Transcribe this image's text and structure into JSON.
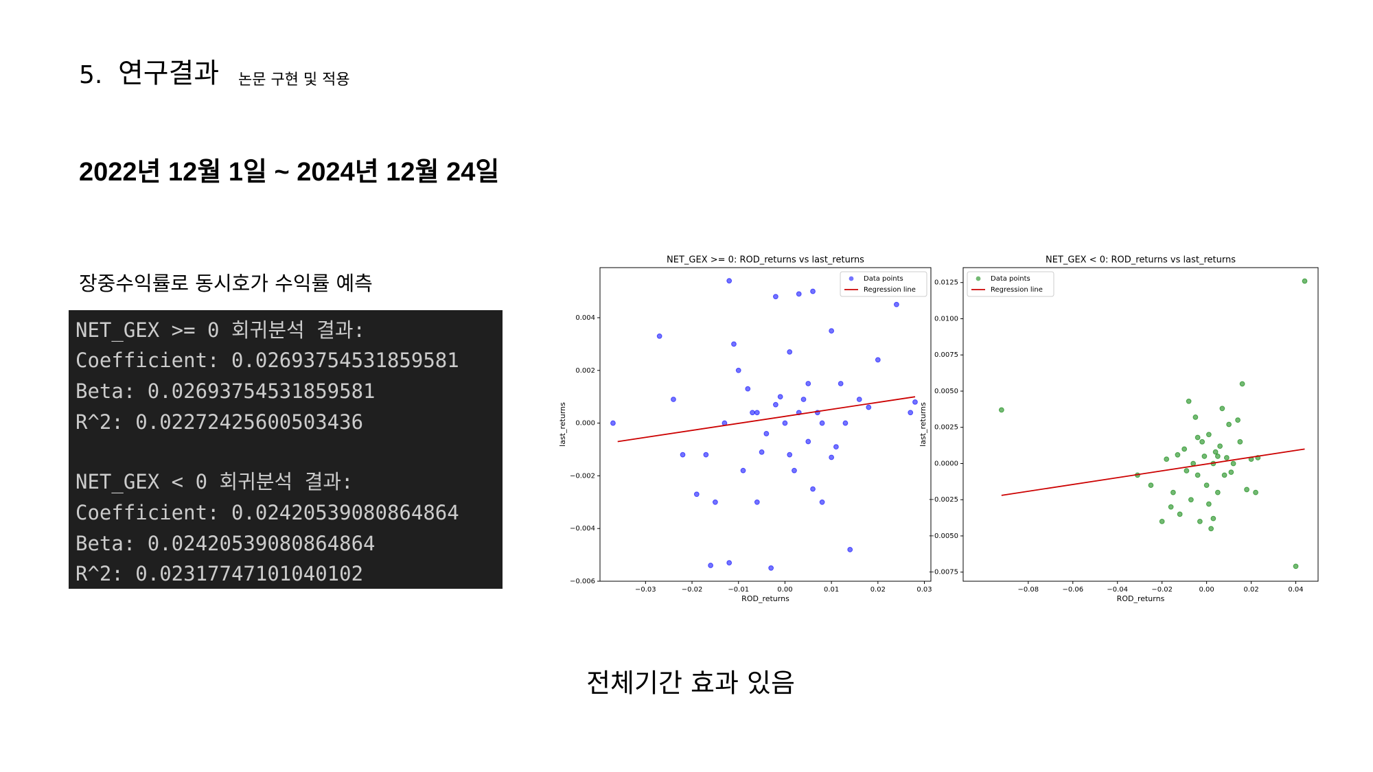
{
  "header": {
    "number": "5.",
    "title": "연구결과",
    "subtitle": "논문 구현 및 적용"
  },
  "period": "2022년 12월 1일 ~ 2024년 12월 24일",
  "description": "장중수익률로 동시호가 수익률 예측",
  "code_block": {
    "groups": [
      [
        "NET_GEX >= 0 회귀분석 결과:",
        "Coefficient: 0.02693754531859581",
        "Beta: 0.02693754531859581",
        "R^2: 0.02272425600503436"
      ],
      [
        "NET_GEX < 0 회귀분석 결과:",
        "Coefficient: 0.02420539080864864",
        "Beta: 0.02420539080864864",
        "R^2: 0.02317747101040102"
      ]
    ]
  },
  "conclusion": "전체기간 효과 있음",
  "chart_data": [
    {
      "type": "scatter",
      "title": "NET_GEX >= 0: ROD_returns vs last_returns",
      "x_label": "ROD_returns",
      "y_label": "last_returns",
      "xlim": [
        -0.0398,
        0.0314
      ],
      "ylim": [
        -0.006,
        0.0059
      ],
      "xticks": [
        {
          "value": -0.03,
          "label": "−0.03"
        },
        {
          "value": -0.02,
          "label": "−0.02"
        },
        {
          "value": -0.01,
          "label": "−0.01"
        },
        {
          "value": 0,
          "label": "0.00"
        },
        0.01,
        0.02,
        0.03
      ],
      "yticks": [
        {
          "value": -0.006,
          "label": "−0.006"
        },
        {
          "value": -0.004,
          "label": "−0.004"
        },
        {
          "value": -0.002,
          "label": "−0.002"
        },
        {
          "value": 0,
          "label": "0.000"
        },
        0.002,
        0.004
      ],
      "legend": "upper right",
      "series": [
        {
          "name": "Data points",
          "type": "scatter",
          "color": "#0000ff",
          "x": [
            -0.037,
            -0.027,
            -0.024,
            -0.022,
            -0.019,
            -0.016,
            -0.015,
            -0.012,
            -0.012,
            -0.01,
            -0.008,
            -0.006,
            -0.005,
            -0.003,
            -0.002,
            -0.001,
            0.0,
            0.001,
            0.002,
            0.003,
            0.004,
            0.005,
            0.006,
            0.007,
            0.008,
            0.01,
            0.011,
            0.012,
            0.014,
            0.016,
            0.02,
            0.024,
            0.027,
            0.028,
            -0.009,
            -0.007,
            -0.004,
            -0.002,
            0.001,
            0.003,
            0.005,
            0.008,
            0.01,
            -0.013,
            -0.011,
            0.013,
            0.018,
            -0.017,
            0.006,
            -0.006
          ],
          "values": [
            0.0,
            0.0033,
            0.0009,
            -0.0012,
            -0.0027,
            -0.0054,
            -0.003,
            0.0054,
            -0.0053,
            0.002,
            0.0013,
            0.0004,
            -0.0011,
            -0.0055,
            0.0048,
            0.001,
            0.0,
            0.0027,
            -0.0018,
            0.0049,
            0.0009,
            -0.0007,
            0.005,
            0.0004,
            -0.003,
            0.0035,
            -0.0009,
            0.0015,
            -0.0048,
            0.0009,
            0.0024,
            0.0045,
            0.0004,
            0.0008,
            -0.0018,
            0.0004,
            -0.0004,
            0.0007,
            -0.0012,
            0.0004,
            0.0015,
            0.0,
            -0.0013,
            0.0,
            0.003,
            0.0,
            0.0006,
            -0.0012,
            -0.0025,
            -0.003
          ]
        },
        {
          "name": "Regression line",
          "type": "line",
          "color": "#cc0000",
          "x": [
            -0.036,
            0.028
          ],
          "values": [
            -0.0007,
            0.001
          ]
        }
      ]
    },
    {
      "type": "scatter",
      "title": "NET_GEX < 0: ROD_returns vs last_returns",
      "x_label": "ROD_returns",
      "y_label": "last_returns",
      "xlim": [
        -0.1092,
        0.05
      ],
      "ylim": [
        -0.00813,
        0.01353
      ],
      "xticks": [
        {
          "value": -0.08,
          "label": "−0.08"
        },
        {
          "value": -0.06,
          "label": "−0.06"
        },
        {
          "value": -0.04,
          "label": "−0.04"
        },
        {
          "value": -0.02,
          "label": "−0.02"
        },
        {
          "value": 0,
          "label": "0.00"
        },
        0.02,
        0.04
      ],
      "yticks": [
        {
          "value": -0.0075,
          "label": "−0.0075"
        },
        {
          "value": -0.005,
          "label": "−0.0050"
        },
        {
          "value": -0.0025,
          "label": "−0.0025"
        },
        {
          "value": 0,
          "label": "0.0000"
        },
        0.0025,
        {
          "value": 0.005,
          "label": "0.0050"
        },
        0.0075,
        {
          "value": 0.01,
          "label": "0.0100"
        },
        0.0125
      ],
      "legend": "upper left",
      "series": [
        {
          "name": "Data points",
          "type": "scatter",
          "color": "#008000",
          "x": [
            -0.092,
            -0.031,
            -0.025,
            -0.02,
            -0.018,
            -0.015,
            -0.012,
            -0.01,
            -0.008,
            -0.007,
            -0.006,
            -0.005,
            -0.004,
            -0.003,
            -0.002,
            -0.001,
            0.0,
            0.001,
            0.002,
            0.003,
            0.004,
            0.005,
            0.006,
            0.007,
            0.008,
            0.009,
            0.01,
            0.012,
            0.014,
            0.016,
            0.018,
            0.02,
            0.022,
            0.023,
            0.04,
            0.044,
            -0.009,
            -0.004,
            0.001,
            0.005,
            0.011,
            -0.013,
            0.015,
            -0.016,
            0.003
          ],
          "values": [
            0.0037,
            -0.0008,
            -0.0015,
            -0.004,
            0.0003,
            -0.002,
            -0.0035,
            0.001,
            0.0043,
            -0.0025,
            0.0,
            0.0032,
            -0.0008,
            -0.004,
            0.0015,
            0.0005,
            -0.0015,
            0.002,
            -0.0045,
            0.0,
            0.0008,
            -0.002,
            0.0012,
            0.0038,
            -0.0008,
            0.0004,
            0.0027,
            0.0,
            0.003,
            0.0055,
            -0.0018,
            0.0003,
            -0.002,
            0.0004,
            -0.0071,
            0.0126,
            -0.0005,
            0.0018,
            -0.0028,
            0.0005,
            -0.0006,
            0.0006,
            0.0015,
            -0.003,
            -0.0038
          ]
        },
        {
          "name": "Regression line",
          "type": "line",
          "color": "#cc0000",
          "x": [
            -0.092,
            0.044
          ],
          "values": [
            -0.0022,
            0.001
          ]
        }
      ]
    }
  ]
}
